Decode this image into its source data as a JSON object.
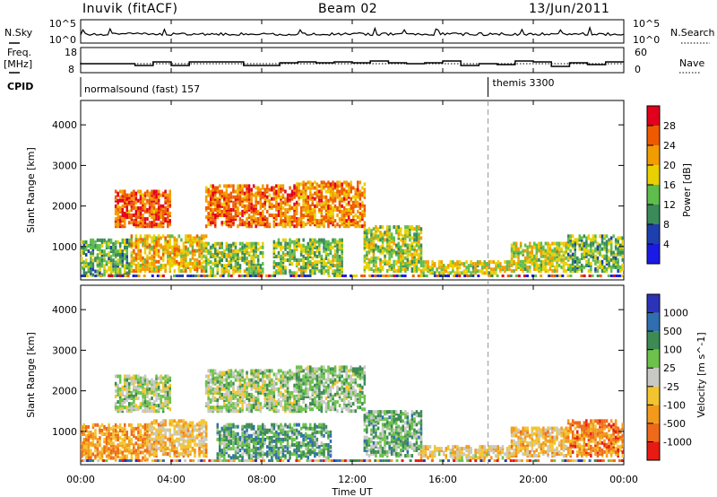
{
  "header": {
    "station": "Inuvik (fitACF)",
    "beam": "Beam 02",
    "date": "13/Jun/2011"
  },
  "noise_panel": {
    "left_label": "N.Sky",
    "right_label": "N.Search",
    "left_ticks": [
      "10^5",
      "10^0"
    ],
    "right_ticks": [
      "10^5",
      "10^0"
    ]
  },
  "freq_panel": {
    "left_label_1": "Freq.",
    "left_label_2": "[MHz]",
    "right_label": "Nave",
    "left_ticks": [
      "18",
      "8"
    ],
    "right_ticks": [
      "60",
      "0"
    ],
    "cpid_label": "CPID"
  },
  "cpid": [
    {
      "name": "normalsound (fast) 157",
      "start_hour": 0
    },
    {
      "name": "themis 3300",
      "start_hour": 18
    }
  ],
  "x_axis": {
    "label": "Time UT",
    "ticks": [
      "00:00",
      "04:00",
      "08:00",
      "12:00",
      "16:00",
      "20:00",
      "00:00"
    ]
  },
  "chart_data": [
    {
      "type": "heatmap",
      "title": "Power",
      "ylabel": "Slant Range [km]",
      "xlabel": "",
      "xlim": [
        0,
        24
      ],
      "ylim": [
        180,
        4600
      ],
      "y_ticks": [
        1000,
        2000,
        3000,
        4000
      ],
      "colorbar_label": "Power [dB]",
      "colorbar_ticks": [
        "28",
        "24",
        "20",
        "16",
        "12",
        "8",
        "4"
      ],
      "colorbar_colors": [
        "#e3001c",
        "#ef5a00",
        "#f39c00",
        "#e9d000",
        "#5fbd4c",
        "#3a8a5a",
        "#1e3fae",
        "#1a1ae6"
      ],
      "echo_regions": [
        {
          "t0": 0.0,
          "t1": 2.2,
          "r0": 300,
          "r1": 1200,
          "level": 0.6
        },
        {
          "t0": 2.2,
          "t1": 5.5,
          "r0": 400,
          "r1": 1300,
          "level": 0.35
        },
        {
          "t0": 1.5,
          "t1": 4.0,
          "r0": 1500,
          "r1": 2400,
          "level": 0.15
        },
        {
          "t0": 5.5,
          "t1": 8.0,
          "r0": 350,
          "r1": 1100,
          "level": 0.55
        },
        {
          "t0": 5.5,
          "t1": 9.5,
          "r0": 1500,
          "r1": 2500,
          "level": 0.2
        },
        {
          "t0": 9.5,
          "t1": 12.5,
          "r0": 1500,
          "r1": 2600,
          "level": 0.25
        },
        {
          "t0": 8.5,
          "t1": 11.5,
          "r0": 350,
          "r1": 1200,
          "level": 0.55
        },
        {
          "t0": 12.5,
          "t1": 15.0,
          "r0": 400,
          "r1": 1500,
          "level": 0.5
        },
        {
          "t0": 15.0,
          "t1": 19.0,
          "r0": 350,
          "r1": 650,
          "level": 0.45
        },
        {
          "t0": 19.0,
          "t1": 21.5,
          "r0": 400,
          "r1": 1100,
          "level": 0.45
        },
        {
          "t0": 21.5,
          "t1": 24.0,
          "r0": 400,
          "r1": 1300,
          "level": 0.6
        }
      ]
    },
    {
      "type": "heatmap",
      "title": "Velocity",
      "ylabel": "Slant Range [km]",
      "xlabel": "Time UT",
      "xlim": [
        0,
        24
      ],
      "ylim": [
        180,
        4600
      ],
      "y_ticks": [
        1000,
        2000,
        3000,
        4000
      ],
      "colorbar_label": "Velocity [m s^-1]",
      "colorbar_ticks": [
        "1000",
        "500",
        "100",
        "25",
        "-25",
        "-100",
        "-500",
        "-1000"
      ],
      "colorbar_colors": [
        "#2b34b8",
        "#2f6fb0",
        "#3e8a55",
        "#6cc24a",
        "#c8c8c4",
        "#f2c530",
        "#f39a1c",
        "#ee6a1a",
        "#e81a14"
      ],
      "echo_regions": [
        {
          "t0": 0.0,
          "t1": 3.0,
          "r0": 300,
          "r1": 1200,
          "level": 0.75
        },
        {
          "t0": 3.0,
          "t1": 5.5,
          "r0": 400,
          "r1": 1300,
          "level": 0.65
        },
        {
          "t0": 1.5,
          "t1": 4.0,
          "r0": 1500,
          "r1": 2400,
          "level": 0.45
        },
        {
          "t0": 5.5,
          "t1": 9.5,
          "r0": 1500,
          "r1": 2500,
          "level": 0.45
        },
        {
          "t0": 9.5,
          "t1": 12.5,
          "r0": 1500,
          "r1": 2600,
          "level": 0.4
        },
        {
          "t0": 6.0,
          "t1": 11.0,
          "r0": 350,
          "r1": 1200,
          "level": 0.3
        },
        {
          "t0": 12.5,
          "t1": 15.0,
          "r0": 400,
          "r1": 1500,
          "level": 0.35
        },
        {
          "t0": 15.0,
          "t1": 19.0,
          "r0": 350,
          "r1": 650,
          "level": 0.6
        },
        {
          "t0": 19.0,
          "t1": 21.5,
          "r0": 400,
          "r1": 1100,
          "level": 0.65
        },
        {
          "t0": 21.5,
          "t1": 24.0,
          "r0": 400,
          "r1": 1300,
          "level": 0.8
        }
      ]
    }
  ]
}
